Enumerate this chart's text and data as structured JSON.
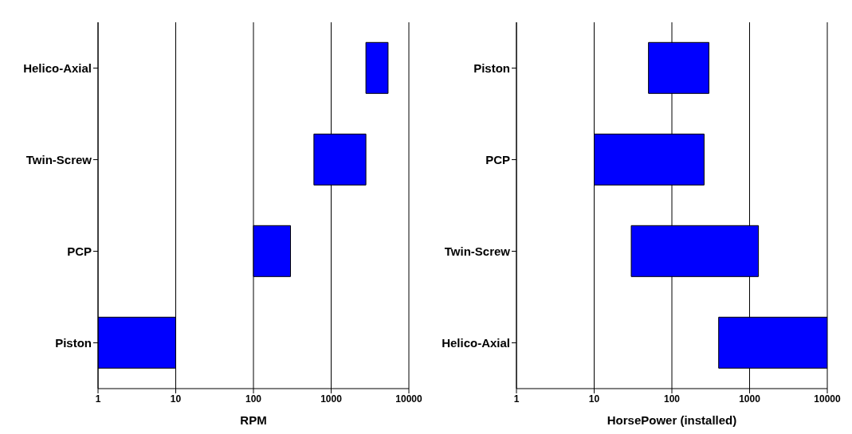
{
  "chart_data": [
    {
      "type": "bar",
      "orientation": "horizontal",
      "categories": [
        "Helico-Axial",
        "Twin-Screw",
        "PCP",
        "Piston"
      ],
      "base": [
        2800,
        600,
        100,
        1
      ],
      "values": [
        2600,
        2200,
        200,
        9
      ],
      "color": "#0000ff",
      "log": "x",
      "xlim": [
        1,
        10000
      ],
      "xticks": [
        1,
        10,
        100,
        1000,
        10000
      ],
      "xlabel": "RPM",
      "grid": "x"
    },
    {
      "type": "bar",
      "orientation": "horizontal",
      "categories": [
        "Piston",
        "PCP",
        "Twin-Screw",
        "Helico-Axial"
      ],
      "base": [
        50,
        10,
        30,
        400
      ],
      "values": [
        250,
        250,
        1270,
        9600
      ],
      "color": "#0000ff",
      "log": "x",
      "xlim": [
        1,
        10000
      ],
      "xticks": [
        1,
        10,
        100,
        1000,
        10000
      ],
      "xlabel": "HorsePower (installed)",
      "grid": "x"
    }
  ]
}
